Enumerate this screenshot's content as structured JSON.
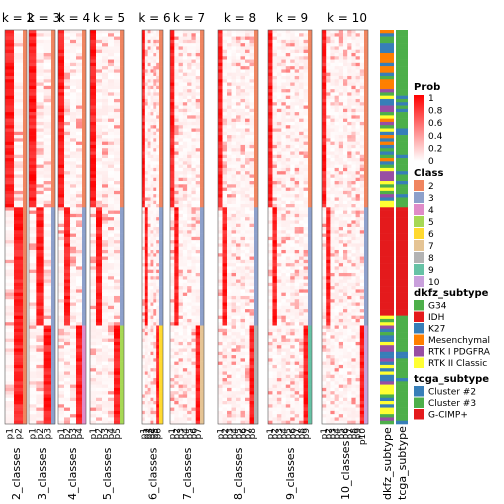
{
  "chart_data": {
    "type": "heatmap",
    "panels": [
      {
        "title": "k = 2",
        "class_label": "2_classes",
        "sublabels": [
          "p1",
          "p2"
        ]
      },
      {
        "title": "k = 3",
        "class_label": "3_classes",
        "sublabels": [
          "p1",
          "p2",
          "p3"
        ]
      },
      {
        "title": "k = 4",
        "class_label": "4_classes",
        "sublabels": [
          "p1",
          "p2",
          "p3",
          "p4"
        ]
      },
      {
        "title": "k = 5",
        "class_label": "5_classes",
        "sublabels": [
          "p1",
          "p2",
          "p3",
          "p4",
          "p5"
        ]
      },
      {
        "title": "k = 6",
        "class_label": "6_classes",
        "sublabels": [
          "p1",
          "p2",
          "p3",
          "p4",
          "p5",
          "p6"
        ]
      },
      {
        "title": "k = 7",
        "class_label": "7_classes",
        "sublabels": [
          "p1",
          "p2",
          "p3",
          "p4",
          "p5",
          "p6",
          "p7"
        ]
      },
      {
        "title": "k = 8",
        "class_label": "8_classes",
        "sublabels": [
          "p1",
          "p2",
          "p3",
          "p4",
          "p5",
          "p6",
          "p7",
          "p8"
        ]
      },
      {
        "title": "k = 9",
        "class_label": "9_classes",
        "sublabels": [
          "p1",
          "p2",
          "p3",
          "p4",
          "p5",
          "p6",
          "p7",
          "p8",
          "p9"
        ]
      },
      {
        "title": "k = 10",
        "class_label": "10_classes",
        "sublabels": [
          "p1",
          "p2",
          "p3",
          "p4",
          "p5",
          "p6",
          "p7",
          "p8",
          "p9",
          "p10"
        ]
      }
    ],
    "annotation_columns": [
      "dkfz_subtype",
      "tcga_subtype"
    ],
    "legends": {
      "prob": {
        "title": "Prob",
        "ticks": [
          "1",
          "0.8",
          "0.6",
          "0.4",
          "0.2",
          "0"
        ],
        "colors": [
          "#ff0000",
          "#ffffff"
        ]
      },
      "class": {
        "title": "Class",
        "items": [
          {
            "label": "2",
            "color": "#f08560"
          },
          {
            "label": "3",
            "color": "#8da0cb"
          },
          {
            "label": "4",
            "color": "#e08bc8"
          },
          {
            "label": "5",
            "color": "#a6d854"
          },
          {
            "label": "6",
            "color": "#ffd92f"
          },
          {
            "label": "7",
            "color": "#e5c494"
          },
          {
            "label": "8",
            "color": "#b3b3b3"
          },
          {
            "label": "9",
            "color": "#66c2a5"
          },
          {
            "label": "10",
            "color": "#c9a0dc"
          }
        ]
      },
      "dkfz": {
        "title": "dkfz_subtype",
        "items": [
          {
            "label": "G34",
            "color": "#4daf4a"
          },
          {
            "label": "IDH",
            "color": "#e41a1c"
          },
          {
            "label": "K27",
            "color": "#377eb8"
          },
          {
            "label": "Mesenchymal",
            "color": "#ff7f00"
          },
          {
            "label": "RTK I PDGFRA",
            "color": "#984ea3"
          },
          {
            "label": "RTK II Classic",
            "color": "#ffff33"
          }
        ]
      },
      "tcga": {
        "title": "tcga_subtype",
        "items": [
          {
            "label": "Cluster #2",
            "color": "#377eb8"
          },
          {
            "label": "Cluster #3",
            "color": "#4daf4a"
          },
          {
            "label": "G-CIMP+",
            "color": "#e41a1c"
          }
        ]
      }
    }
  }
}
